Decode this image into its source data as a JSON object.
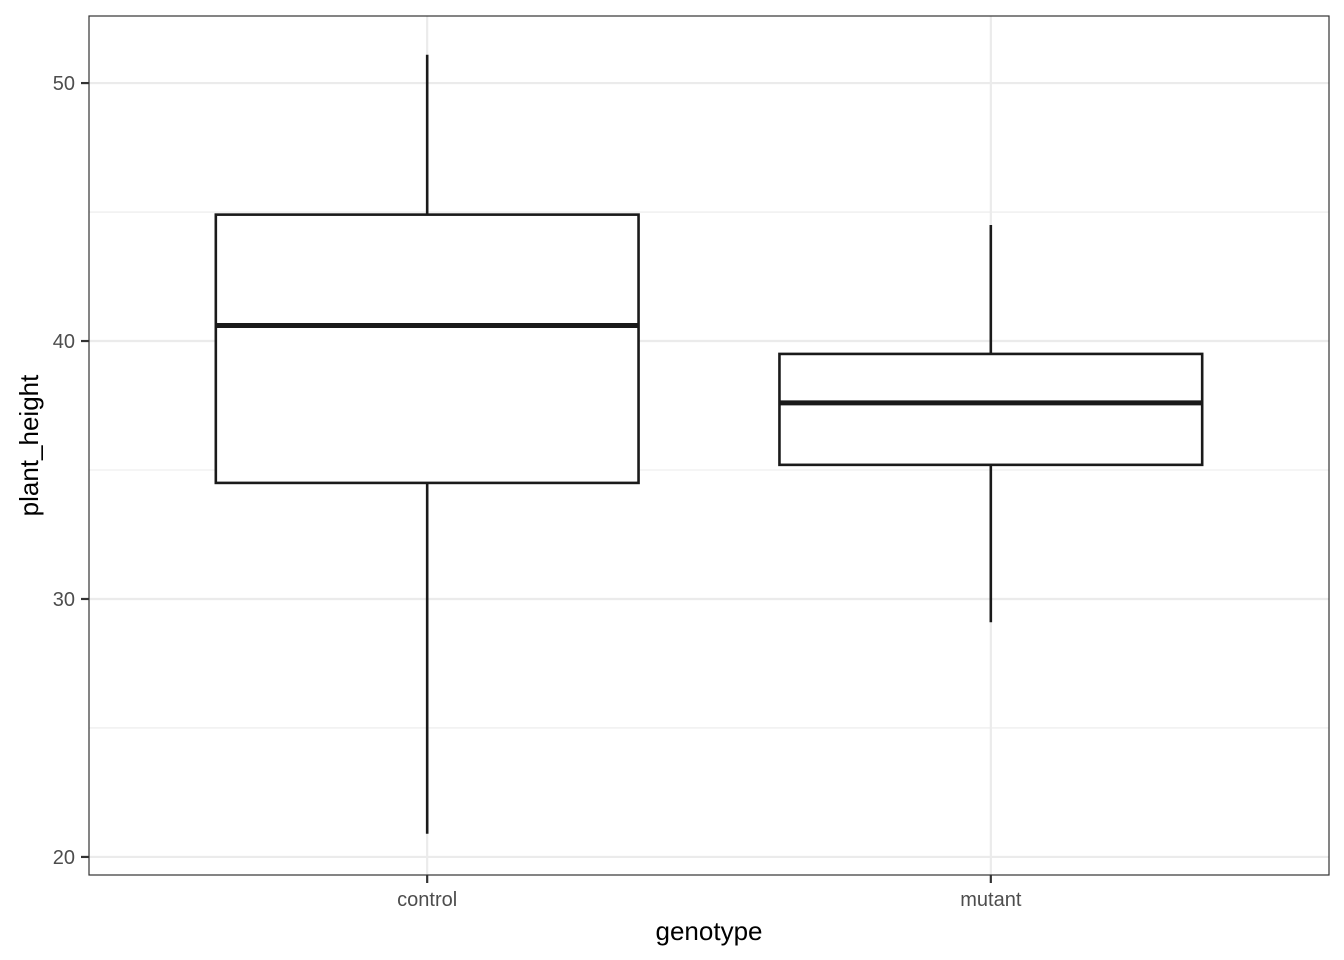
{
  "chart_data": {
    "type": "boxplot",
    "title": "",
    "xlabel": "genotype",
    "ylabel": "plant_height",
    "categories": [
      "control",
      "mutant"
    ],
    "boxes": [
      {
        "category": "control",
        "lower_whisker": 20.9,
        "q1": 34.5,
        "median": 40.6,
        "q3": 44.9,
        "upper_whisker": 51.1
      },
      {
        "category": "mutant",
        "lower_whisker": 29.1,
        "q1": 35.2,
        "median": 37.6,
        "q3": 39.5,
        "upper_whisker": 44.5
      }
    ],
    "ylim": [
      19.3,
      52.6
    ],
    "yticks": [
      20,
      30,
      40,
      50
    ],
    "ytick_labels": [
      "20",
      "30",
      "40",
      "50"
    ],
    "grid": true,
    "colors": {
      "box_line": "#1a1a1a",
      "box_fill": "#ffffff",
      "grid": "#ebebeb",
      "panel_border": "#333333"
    }
  }
}
